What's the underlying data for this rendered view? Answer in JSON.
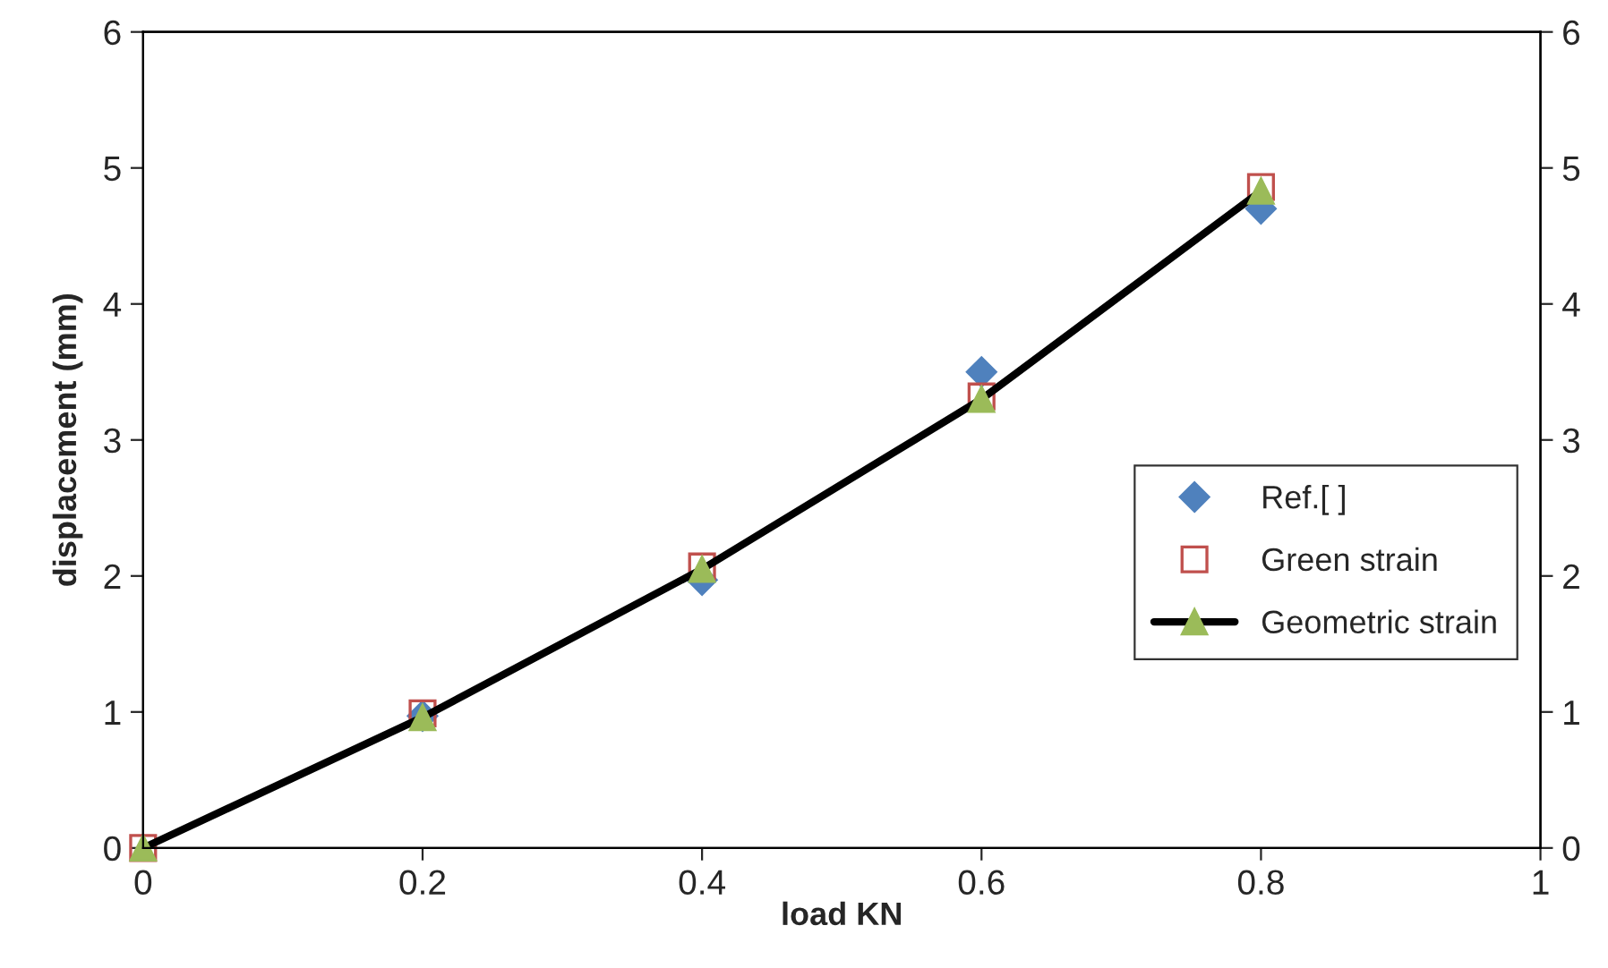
{
  "chart_data": {
    "type": "scatter",
    "xlabel": "load KN",
    "ylabel": "displacement (mm)",
    "x": [
      0,
      0.2,
      0.4,
      0.6,
      0.8
    ],
    "series": [
      {
        "name": "Ref.[ ]",
        "marker": "diamond",
        "color": "#4f81bd",
        "values": [
          null,
          0.97,
          1.97,
          3.5,
          4.7
        ]
      },
      {
        "name": "Green strain",
        "marker": "square",
        "color": "#c0504d",
        "values": [
          0,
          0.99,
          2.07,
          3.32,
          4.86
        ]
      },
      {
        "name": "Geometric strain",
        "type": "line",
        "marker": "triangle",
        "color": "#000000",
        "colors": [
          "#9bbb59",
          "#9bbb59",
          "#9bbb59",
          "#9bbb59",
          "#9bbb59"
        ],
        "values": [
          0,
          0.96,
          2.05,
          3.3,
          4.83
        ]
      }
    ],
    "xlim": [
      0,
      1
    ],
    "xticks": [
      0,
      0.2,
      0.4,
      0.6,
      0.8,
      1
    ],
    "ylim": [
      0,
      6
    ],
    "yticks": [
      0,
      1,
      2,
      3,
      4,
      5,
      6
    ],
    "y2lim": [
      0,
      6
    ],
    "y2ticks": [
      0,
      1,
      2,
      3,
      4,
      5,
      6
    ],
    "grid": false,
    "legend": "right"
  }
}
